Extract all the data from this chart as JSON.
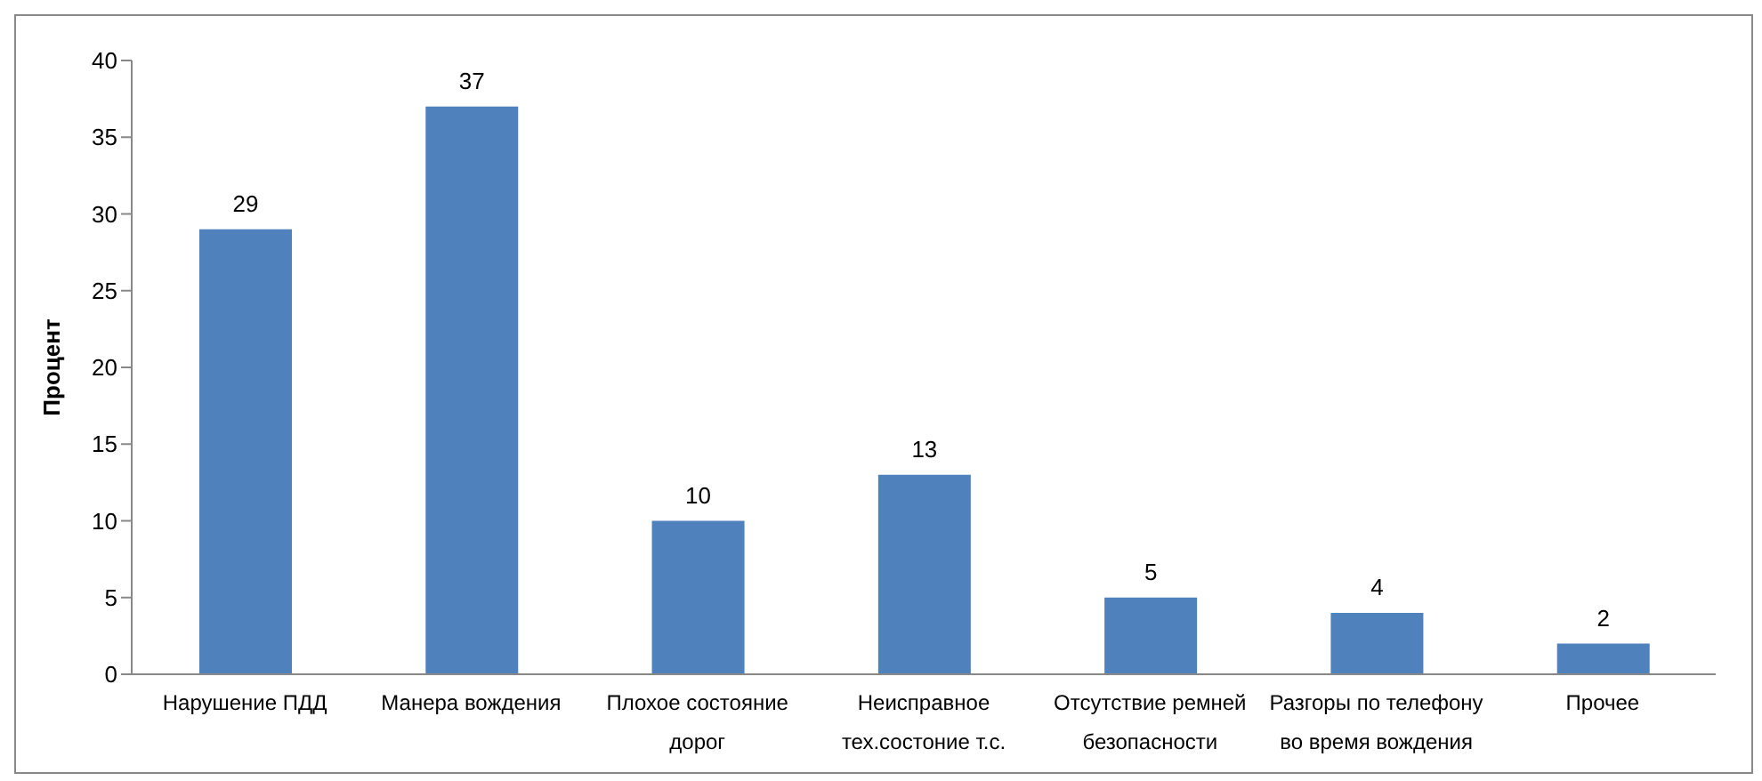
{
  "chart_data": {
    "type": "bar",
    "ylabel": "Процент",
    "categories": [
      "Нарушение ПДД",
      "Манера вождения",
      "Плохое состояние дорог",
      "Неисправное тех.состоние т.с.",
      "Отсутствие ремней безопасности",
      "Разгоры по телефону во время вождения",
      "Прочее"
    ],
    "values": [
      29,
      37,
      10,
      13,
      5,
      4,
      2
    ],
    "color": "#4f81bd",
    "ylim": [
      0,
      40
    ],
    "yticks": [
      0,
      5,
      10,
      15,
      20,
      25,
      30,
      35,
      40
    ],
    "grid": false,
    "data_labels": true
  }
}
